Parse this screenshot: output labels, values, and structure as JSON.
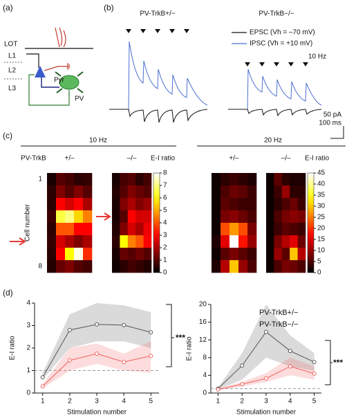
{
  "panel_labels": [
    "(a)",
    "(b)",
    "(c)",
    "(d)"
  ],
  "diagram": {
    "layers": [
      "LOT",
      "L1",
      "L2",
      "L3"
    ],
    "cells": [
      "Pyr",
      "PV"
    ]
  },
  "traces": {
    "titles": [
      {
        "text": "PV-TrkB+/−",
        "color": "#111111"
      },
      {
        "text": "PV-TrkB−/−",
        "color": "#e53935"
      }
    ],
    "legend": [
      {
        "text": "EPSC (Vh = –70 mV)",
        "color": "#111111"
      },
      {
        "text": "IPSC (Vh = +10 mV)",
        "color": "#4a6fd1"
      }
    ],
    "stim_label": "10 Hz",
    "scale_y": "50 pA",
    "scale_x": "100 ms"
  },
  "heatmap_groups": [
    {
      "title": "10 Hz"
    },
    {
      "title": "20 Hz"
    }
  ],
  "heatmap_text": {
    "genotype": "PV-TrkB",
    "ylabel": "Cell number"
  },
  "chart_data": [
    {
      "type": "heatmap",
      "title": "+/–",
      "title_color": "#111111",
      "colormap": "hot",
      "zlim": [
        0,
        8
      ],
      "colorbar": false,
      "ylim": [
        1,
        8
      ],
      "yticks": [
        1,
        8
      ],
      "values": [
        [
          0.3,
          1,
          0.8,
          0.5,
          0.6
        ],
        [
          0.5,
          1.5,
          1,
          1.5,
          1
        ],
        [
          0.5,
          3,
          2.5,
          3,
          2
        ],
        [
          0.7,
          6.5,
          7,
          5.5,
          4.5
        ],
        [
          0.5,
          4,
          4,
          3,
          3
        ],
        [
          0.6,
          2.5,
          2,
          1.5,
          2
        ],
        [
          0.5,
          3,
          6,
          7.8,
          3.5
        ],
        [
          0.4,
          1.2,
          1.5,
          1,
          0.8
        ]
      ]
    },
    {
      "type": "heatmap",
      "title": "–/–",
      "title_color": "#e53935",
      "colormap": "hot",
      "zlim": [
        0,
        8
      ],
      "colorbar": true,
      "zlabel": "E-I ratio",
      "zticks": [
        0,
        1,
        2,
        3,
        4,
        5,
        6,
        7,
        8
      ],
      "values": [
        [
          0.3,
          0.8,
          1,
          0.5,
          0.8
        ],
        [
          0.4,
          1,
          1.5,
          1.2,
          1
        ],
        [
          0.3,
          1.5,
          2,
          1.5,
          1.8
        ],
        [
          0.3,
          1,
          3,
          2.5,
          2.5
        ],
        [
          0.4,
          1.5,
          2.5,
          2,
          2.8
        ],
        [
          0.5,
          6,
          4.5,
          4,
          3
        ],
        [
          0.3,
          1.2,
          1,
          1.3,
          1
        ],
        [
          0.2,
          0.5,
          0.8,
          0.6,
          0.4
        ]
      ]
    },
    {
      "type": "heatmap",
      "title": "+/–",
      "title_color": "#111111",
      "colormap": "hot",
      "zlim": [
        0,
        45
      ],
      "colorbar": false,
      "values": [
        [
          1,
          3,
          4,
          3,
          2
        ],
        [
          1,
          5,
          7,
          6,
          4
        ],
        [
          1,
          6,
          5,
          4,
          4
        ],
        [
          1,
          8,
          9,
          7,
          5
        ],
        [
          1,
          22,
          27,
          22,
          8
        ],
        [
          2,
          15,
          45,
          18,
          10
        ],
        [
          1,
          6,
          8,
          6,
          4
        ],
        [
          2,
          12,
          30,
          10,
          5
        ]
      ]
    },
    {
      "type": "heatmap",
      "title": "–/–",
      "title_color": "#e53935",
      "colormap": "hot",
      "zlim": [
        0,
        45
      ],
      "colorbar": true,
      "zlabel": "E-I ratio",
      "zticks": [
        0,
        5,
        10,
        15,
        20,
        25,
        30,
        35,
        40,
        45
      ],
      "values": [
        [
          1,
          6,
          3,
          2,
          2
        ],
        [
          1,
          4,
          10,
          3,
          3
        ],
        [
          1,
          3,
          5,
          7,
          4
        ],
        [
          1,
          5,
          8,
          9,
          8
        ],
        [
          1,
          4,
          6,
          5,
          4
        ],
        [
          1,
          8,
          12,
          15,
          7
        ],
        [
          1,
          10,
          6,
          30,
          12
        ],
        [
          1,
          5,
          8,
          7,
          5
        ]
      ]
    },
    {
      "type": "line",
      "xlabel": "Stimulation number",
      "ylabel": "E-I ratio",
      "x": [
        1,
        2,
        3,
        4,
        5
      ],
      "xlim": [
        0.7,
        5.3
      ],
      "xticks": [
        1,
        2,
        3,
        4,
        5
      ],
      "ylim": [
        0,
        4
      ],
      "yticks": [
        0,
        1,
        2,
        3,
        4
      ],
      "hline": 1,
      "annotation": "***",
      "series": [
        {
          "color": "#555555",
          "values": [
            0.7,
            2.8,
            3.05,
            3.02,
            2.7
          ],
          "lower": [
            0.6,
            2.0,
            2.3,
            2.3,
            2.0
          ],
          "upper": [
            0.9,
            3.5,
            4.0,
            3.9,
            3.6
          ]
        },
        {
          "color": "#f06060",
          "values": [
            0.3,
            1.45,
            1.75,
            1.38,
            1.65
          ],
          "lower": [
            0.2,
            1.0,
            1.3,
            1.0,
            0.9
          ],
          "upper": [
            0.4,
            2.0,
            2.2,
            1.75,
            2.3
          ]
        }
      ]
    },
    {
      "type": "line",
      "xlabel": "Stimulation number",
      "ylabel": "E-I ratio",
      "x": [
        1,
        2,
        3,
        4,
        5
      ],
      "xlim": [
        0.7,
        5.3
      ],
      "xticks": [
        1,
        2,
        3,
        4,
        5
      ],
      "ylim": [
        0,
        20
      ],
      "yticks": [
        0,
        4,
        8,
        12,
        16,
        20
      ],
      "hline": 1,
      "annotation": "***",
      "legend": "upper right",
      "series": [
        {
          "name": "PV-TrkB+/−",
          "color": "#555555",
          "values": [
            1,
            6.2,
            13.8,
            9.5,
            7
          ],
          "lower": [
            0.8,
            3,
            8,
            6,
            5
          ],
          "upper": [
            1.2,
            9,
            20,
            13,
            9
          ]
        },
        {
          "name": "PV-TrkB−/−",
          "color": "#f06060",
          "values": [
            0.8,
            2,
            3.3,
            6,
            4.4
          ],
          "lower": [
            0.6,
            1.5,
            2.5,
            4,
            3
          ],
          "upper": [
            1,
            2.5,
            4.5,
            8,
            6
          ]
        }
      ]
    }
  ]
}
